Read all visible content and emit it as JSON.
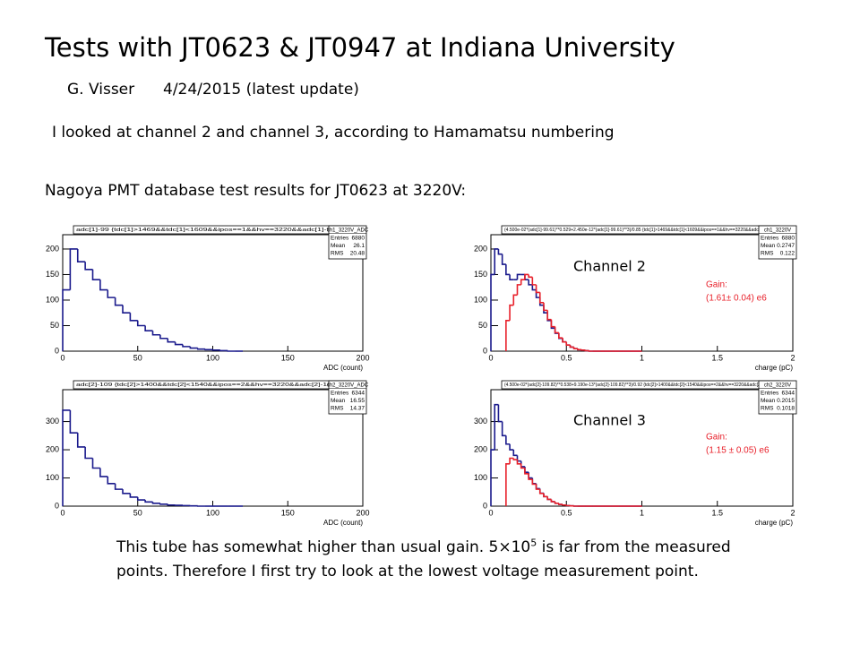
{
  "title": "Tests with JT0623 & JT0947 at Indiana University",
  "author": "G. Visser",
  "date": "4/24/2015 (latest update)",
  "intro": "I looked at channel 2 and channel 3, according to Hamamatsu numbering",
  "section": "Nagoya PMT database test results for JT0623 at 3220V:",
  "channel_labels": [
    "Channel 2",
    "Channel 3"
  ],
  "gain": [
    {
      "label": "Gain:",
      "value": "(1.61± 0.04) e6"
    },
    {
      "label": "Gain:",
      "value": "(1.15 ± 0.05) e6"
    }
  ],
  "plots": [
    {
      "type": "histogram",
      "cut": "adc[1]-99 {tdc[1]>1469&&tdc[1]<1609&&ipos==1&&hv==3220&&adc[1]-99>0}",
      "stats": {
        "name": "ch1_3220V_ADC",
        "rows": [
          [
            "Entries",
            "6880"
          ],
          [
            "Mean",
            "26.1"
          ],
          [
            "RMS",
            "20.48"
          ]
        ]
      },
      "xlabel": "ADC (count)",
      "xlim": [
        0,
        200
      ],
      "xticks": [
        0,
        50,
        100,
        150,
        200
      ],
      "ylim": [
        0,
        228
      ],
      "yticks": [
        0,
        50,
        100,
        150,
        200
      ],
      "bins": [
        0,
        5,
        10,
        15,
        20,
        25,
        30,
        35,
        40,
        45,
        50,
        55,
        60,
        65,
        70,
        75,
        80,
        85,
        90,
        95,
        100,
        105,
        110,
        115,
        120
      ],
      "series": [
        {
          "color": "#1a1a8c",
          "values": [
            120,
            200,
            175,
            160,
            140,
            120,
            105,
            90,
            75,
            60,
            50,
            40,
            32,
            25,
            18,
            13,
            9,
            6,
            4,
            3,
            2,
            1,
            0,
            0
          ]
        }
      ]
    },
    {
      "type": "histogram",
      "cut": "(4.500e-02*(adc[1]-99.61)**0.529+2.450e-12*(adc[1]-99.61)**3)/0.85 {tdc[1]>1469&&tdc[1]<1609&&ipos==1&&hv==3220&&adc[1]-99>0}",
      "stats": {
        "name": "ch1_3220V",
        "rows": [
          [
            "Entries",
            "6880"
          ],
          [
            "Mean",
            "0.2747"
          ],
          [
            "RMS",
            "0.122"
          ]
        ]
      },
      "xlabel": "charge (pC)",
      "xlim": [
        0,
        2
      ],
      "xticks": [
        0,
        0.5,
        1,
        1.5,
        2
      ],
      "ylim": [
        0,
        228
      ],
      "yticks": [
        0,
        50,
        100,
        150,
        200
      ],
      "bins": [
        0,
        0.025,
        0.05,
        0.075,
        0.1,
        0.125,
        0.15,
        0.175,
        0.2,
        0.225,
        0.25,
        0.275,
        0.3,
        0.325,
        0.35,
        0.375,
        0.4,
        0.425,
        0.45,
        0.475,
        0.5,
        0.525,
        0.55,
        0.575,
        0.6,
        0.625,
        0.65,
        0.675,
        0.7,
        0.725,
        0.75,
        0.775,
        0.8,
        0.825,
        0.85,
        0.875,
        0.9,
        0.925,
        0.95,
        0.975,
        1
      ],
      "series": [
        {
          "color": "#1a1a8c",
          "values": [
            150,
            200,
            190,
            170,
            150,
            140,
            140,
            150,
            150,
            140,
            130,
            120,
            105,
            90,
            75,
            60,
            45,
            35,
            25,
            18,
            12,
            8,
            5,
            3,
            2,
            1,
            0,
            0,
            0,
            0,
            0,
            0,
            0,
            0,
            0,
            0,
            0,
            0,
            0,
            0
          ]
        },
        {
          "color": "#e8202a",
          "values": [
            null,
            null,
            null,
            null,
            60,
            90,
            110,
            130,
            140,
            150,
            145,
            130,
            115,
            95,
            80,
            62,
            48,
            36,
            26,
            18,
            12,
            8,
            5,
            3,
            2,
            1,
            0,
            0,
            0,
            0,
            0,
            0,
            0,
            0,
            0,
            0,
            0,
            0,
            0,
            0
          ]
        }
      ]
    },
    {
      "type": "histogram",
      "cut": "adc[2]-109 {tdc[2]>1400&&tdc[2]<1540&&ipos==2&&hv==3220&&adc[2]-109>0}",
      "stats": {
        "name": "ch2_3220V_ADC",
        "rows": [
          [
            "Entries",
            "6344"
          ],
          [
            "Mean",
            "16.55"
          ],
          [
            "RMS",
            "14.37"
          ]
        ]
      },
      "xlabel": "ADC (count)",
      "xlim": [
        0,
        200
      ],
      "xticks": [
        0,
        50,
        100,
        150,
        200
      ],
      "ylim": [
        0,
        413
      ],
      "yticks": [
        0,
        100,
        200,
        300
      ],
      "bins": [
        0,
        5,
        10,
        15,
        20,
        25,
        30,
        35,
        40,
        45,
        50,
        55,
        60,
        65,
        70,
        75,
        80,
        85,
        90,
        95,
        100,
        105,
        110,
        115,
        120
      ],
      "series": [
        {
          "color": "#1a1a8c",
          "values": [
            340,
            260,
            210,
            170,
            135,
            105,
            80,
            60,
            45,
            32,
            22,
            15,
            10,
            7,
            4,
            3,
            2,
            1,
            0,
            0,
            0,
            0,
            0,
            0
          ]
        }
      ]
    },
    {
      "type": "histogram",
      "cut": "(4.500e-02*(adc[2]-109.82)**0.538+9.190e-13*(adc[2]-109.82)**3)/0.92 {tdc[2]>1400&&tdc[2]<1540&&ipos==2&&hv==3220&&adc[2]-109>0}",
      "stats": {
        "name": "ch2_3220V",
        "rows": [
          [
            "Entries",
            "6344"
          ],
          [
            "Mean",
            "0.2015"
          ],
          [
            "RMS",
            "0.1018"
          ]
        ]
      },
      "xlabel": "charge (pC)",
      "xlim": [
        0,
        2
      ],
      "xticks": [
        0,
        0.5,
        1,
        1.5,
        2
      ],
      "ylim": [
        0,
        413
      ],
      "yticks": [
        0,
        100,
        200,
        300
      ],
      "bins": [
        0,
        0.025,
        0.05,
        0.075,
        0.1,
        0.125,
        0.15,
        0.175,
        0.2,
        0.225,
        0.25,
        0.275,
        0.3,
        0.325,
        0.35,
        0.375,
        0.4,
        0.425,
        0.45,
        0.475,
        0.5,
        0.525,
        0.55,
        0.575,
        0.6,
        0.625,
        0.65,
        0.675,
        0.7,
        0.725,
        0.75,
        0.775,
        0.8,
        0.825,
        0.85,
        0.875,
        0.9,
        0.925,
        0.95,
        0.975,
        1
      ],
      "series": [
        {
          "color": "#1a1a8c",
          "values": [
            200,
            360,
            300,
            250,
            220,
            200,
            180,
            160,
            140,
            120,
            100,
            80,
            62,
            46,
            34,
            24,
            16,
            10,
            6,
            4,
            2,
            1,
            0,
            0,
            0,
            0,
            0,
            0,
            0,
            0,
            0,
            0,
            0,
            0,
            0,
            0,
            0,
            0,
            0,
            0
          ]
        },
        {
          "color": "#e8202a",
          "values": [
            null,
            null,
            null,
            null,
            150,
            170,
            165,
            150,
            135,
            115,
            95,
            78,
            60,
            45,
            34,
            24,
            16,
            10,
            6,
            4,
            2,
            1,
            0,
            0,
            0,
            0,
            0,
            0,
            0,
            0,
            0,
            0,
            0,
            0,
            0,
            0,
            0,
            0,
            0,
            0
          ]
        }
      ]
    }
  ],
  "footer": {
    "before": "This tube has somewhat higher than usual gain. 5×10",
    "sup": "5",
    "after": " is far from the measured points. Therefore I first try to look at the lowest voltage measurement point."
  }
}
